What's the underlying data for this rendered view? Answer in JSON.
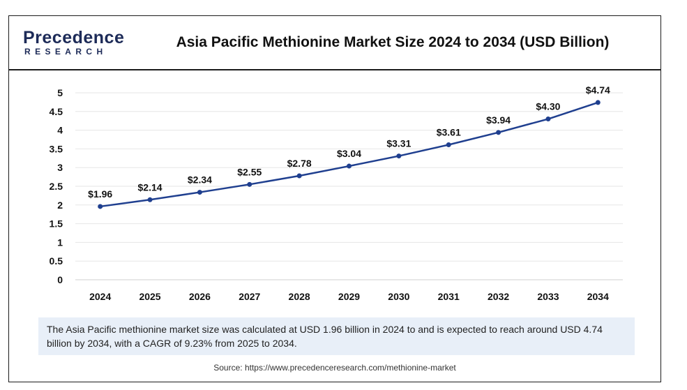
{
  "logo": {
    "top": "Precedence",
    "bottom": "RESEARCH"
  },
  "title": "Asia Pacific Methionine Market Size 2024 to 2034 (USD Billion)",
  "footnote": "The Asia Pacific methionine market size was calculated at USD 1.96 billion in 2024 to and is expected to reach around USD 4.74 billion by 2034, with a CAGR of 9.23% from 2025 to 2034.",
  "source": "Source: https://www.precedenceresearch.com/methionine-market",
  "colors": {
    "line": "#1f3f8f",
    "grid": "#e6e6e6",
    "logo": "#1d2b58",
    "footnote_bg": "#e8eff8"
  },
  "chart_data": {
    "type": "line",
    "title": "Asia Pacific Methionine Market Size 2024 to 2034 (USD Billion)",
    "xlabel": "",
    "ylabel": "",
    "categories": [
      "2024",
      "2025",
      "2026",
      "2027",
      "2028",
      "2029",
      "2030",
      "2031",
      "2032",
      "2033",
      "2034"
    ],
    "values": [
      1.96,
      2.14,
      2.34,
      2.55,
      2.78,
      3.04,
      3.31,
      3.61,
      3.94,
      4.3,
      4.74
    ],
    "data_labels": [
      "$1.96",
      "$2.14",
      "$2.34",
      "$2.55",
      "$2.78",
      "$3.04",
      "$3.31",
      "$3.61",
      "$3.94",
      "$4.30",
      "$4.74"
    ],
    "y_ticks": [
      "0",
      "0.5",
      "1",
      "1.5",
      "2",
      "2.5",
      "3",
      "3.5",
      "4",
      "4.5",
      "5"
    ],
    "ylim": [
      0,
      5
    ],
    "grid": true,
    "legend": "none"
  }
}
